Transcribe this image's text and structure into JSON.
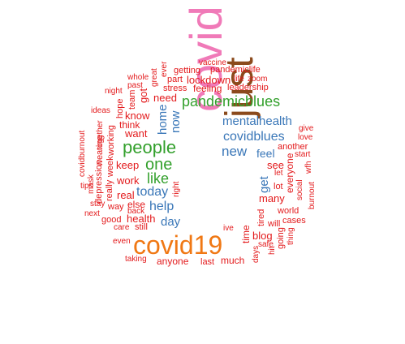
{
  "title": "word cloud",
  "colors": {
    "red": "#e31a1c",
    "blue": "#3a77b8",
    "green": "#33a02c",
    "orange": "#f07814",
    "pink": "#f07ab8",
    "brown": "#8b4a1c"
  },
  "words": [
    {
      "text": "covid",
      "color": "pink"
    },
    {
      "text": "just",
      "color": "brown"
    },
    {
      "text": "covid19",
      "color": "orange"
    },
    {
      "text": "pandemicblues",
      "color": "green"
    },
    {
      "text": "people",
      "color": "green"
    },
    {
      "text": "one",
      "color": "green"
    },
    {
      "text": "like",
      "color": "green"
    },
    {
      "text": "mentalhealth",
      "color": "blue"
    },
    {
      "text": "covidblues",
      "color": "blue"
    },
    {
      "text": "new",
      "color": "blue"
    },
    {
      "text": "feel",
      "color": "blue"
    },
    {
      "text": "today",
      "color": "blue"
    },
    {
      "text": "help",
      "color": "blue"
    },
    {
      "text": "day",
      "color": "blue"
    },
    {
      "text": "home",
      "color": "blue"
    },
    {
      "text": "now",
      "color": "blue"
    },
    {
      "text": "get",
      "color": "blue"
    },
    {
      "text": "need",
      "color": "red"
    },
    {
      "text": "know",
      "color": "red"
    },
    {
      "text": "think",
      "color": "red"
    },
    {
      "text": "want",
      "color": "red"
    },
    {
      "text": "keep",
      "color": "red"
    },
    {
      "text": "work",
      "color": "red"
    },
    {
      "text": "real",
      "color": "red"
    },
    {
      "text": "else",
      "color": "red"
    },
    {
      "text": "health",
      "color": "red"
    },
    {
      "text": "still",
      "color": "red"
    },
    {
      "text": "good",
      "color": "red"
    },
    {
      "text": "way",
      "color": "red"
    },
    {
      "text": "care",
      "color": "red"
    },
    {
      "text": "back",
      "color": "red"
    },
    {
      "text": "even",
      "color": "red"
    },
    {
      "text": "taking",
      "color": "red"
    },
    {
      "text": "anyone",
      "color": "red"
    },
    {
      "text": "last",
      "color": "red"
    },
    {
      "text": "much",
      "color": "red"
    },
    {
      "text": "blog",
      "color": "red"
    },
    {
      "text": "safe",
      "color": "red"
    },
    {
      "text": "ive",
      "color": "red"
    },
    {
      "text": "will",
      "color": "red"
    },
    {
      "text": "cases",
      "color": "red"
    },
    {
      "text": "world",
      "color": "red"
    },
    {
      "text": "another",
      "color": "red"
    },
    {
      "text": "start",
      "color": "red"
    },
    {
      "text": "love",
      "color": "red"
    },
    {
      "text": "give",
      "color": "red"
    },
    {
      "text": "let",
      "color": "red"
    },
    {
      "text": "see",
      "color": "red"
    },
    {
      "text": "lot",
      "color": "red"
    },
    {
      "text": "many",
      "color": "red"
    },
    {
      "text": "everyone",
      "color": "red"
    },
    {
      "text": "social",
      "color": "red"
    },
    {
      "text": "burnout",
      "color": "red"
    },
    {
      "text": "wfh",
      "color": "red"
    },
    {
      "text": "time",
      "color": "red"
    },
    {
      "text": "tired",
      "color": "red"
    },
    {
      "text": "going",
      "color": "red"
    },
    {
      "text": "thing",
      "color": "red"
    },
    {
      "text": "hit",
      "color": "red"
    },
    {
      "text": "days",
      "color": "red"
    },
    {
      "text": "right",
      "color": "red"
    },
    {
      "text": "stay",
      "color": "red"
    },
    {
      "text": "next",
      "color": "red"
    },
    {
      "text": "tips",
      "color": "red"
    },
    {
      "text": "ideas",
      "color": "red"
    },
    {
      "text": "hope",
      "color": "red"
    },
    {
      "text": "got",
      "color": "red"
    },
    {
      "text": "team",
      "color": "red"
    },
    {
      "text": "night",
      "color": "red"
    },
    {
      "text": "whole",
      "color": "red"
    },
    {
      "text": "past",
      "color": "red"
    },
    {
      "text": "great",
      "color": "red"
    },
    {
      "text": "ever",
      "color": "red"
    },
    {
      "text": "getting",
      "color": "red"
    },
    {
      "text": "vaccine",
      "color": "red"
    },
    {
      "text": "pandemiclife",
      "color": "red"
    },
    {
      "text": "part",
      "color": "red"
    },
    {
      "text": "lockdown",
      "color": "red"
    },
    {
      "text": "life",
      "color": "red"
    },
    {
      "text": "zoom",
      "color": "red"
    },
    {
      "text": "stress",
      "color": "red"
    },
    {
      "text": "feeling",
      "color": "red"
    },
    {
      "text": "leadership",
      "color": "red"
    },
    {
      "text": "really",
      "color": "red"
    },
    {
      "text": "week",
      "color": "red"
    },
    {
      "text": "working",
      "color": "red"
    },
    {
      "text": "depression",
      "color": "red"
    },
    {
      "text": "wearing",
      "color": "red"
    },
    {
      "text": "mask",
      "color": "red"
    },
    {
      "text": "together",
      "color": "red"
    },
    {
      "text": "covidburnout",
      "color": "red"
    }
  ]
}
